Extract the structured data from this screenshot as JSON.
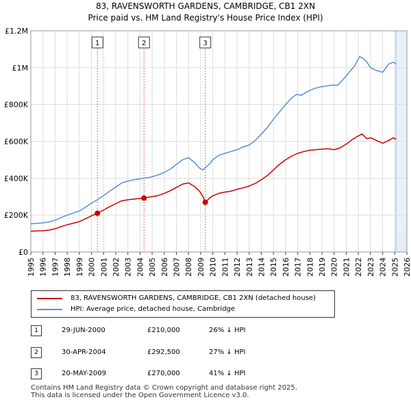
{
  "title_line1": "83, RAVENSWORTH GARDENS, CAMBRIDGE, CB1 2XN",
  "title_line2": "Price paid vs. HM Land Registry's House Price Index (HPI)",
  "colors": {
    "property": "#cc0000",
    "hpi": "#5b8fd0",
    "grid": "#dddddd",
    "shade": "#dce6f5"
  },
  "chart_data": {
    "type": "line",
    "title": "83, RAVENSWORTH GARDENS, CAMBRIDGE, CB1 2XN — Price paid vs. HM Land Registry's House Price Index (HPI)",
    "xlabel": "",
    "ylabel": "",
    "xlim": [
      1995,
      2026
    ],
    "ylim": [
      0,
      1200000
    ],
    "y_ticks": [
      0,
      200000,
      400000,
      600000,
      800000,
      1000000,
      1200000
    ],
    "y_tick_labels": [
      "£0",
      "£200K",
      "£400K",
      "£600K",
      "£800K",
      "£1M",
      "£1.2M"
    ],
    "x_ticks": [
      1995,
      1996,
      1997,
      1998,
      1999,
      2000,
      2001,
      2002,
      2003,
      2004,
      2005,
      2006,
      2007,
      2008,
      2009,
      2010,
      2011,
      2012,
      2013,
      2014,
      2015,
      2016,
      2017,
      2018,
      2019,
      2020,
      2021,
      2022,
      2023,
      2024,
      2025,
      2026
    ],
    "x_tick_labels": [
      "1995",
      "1996",
      "1997",
      "1998",
      "1999",
      "2000",
      "2001",
      "2002",
      "2003",
      "2004",
      "2005",
      "2006",
      "2007",
      "2008",
      "2009",
      "2010",
      "2011",
      "2012",
      "2013",
      "2014",
      "2015",
      "2016",
      "2017",
      "2018",
      "2019",
      "2020",
      "2021",
      "2022",
      "2023",
      "2024",
      "2025",
      "2026"
    ],
    "grid": true,
    "future_shade_from": 2025.1,
    "series": [
      {
        "name": "83, RAVENSWORTH GARDENS, CAMBRIDGE, CB1 2XN (detached house)",
        "points": [
          [
            1995.0,
            113000
          ],
          [
            1995.5,
            114000
          ],
          [
            1996.0,
            115000
          ],
          [
            1996.5,
            119000
          ],
          [
            1997.0,
            126000
          ],
          [
            1997.5,
            137000
          ],
          [
            1998.0,
            148000
          ],
          [
            1998.5,
            156000
          ],
          [
            1999.0,
            165000
          ],
          [
            1999.5,
            180000
          ],
          [
            2000.0,
            196000
          ],
          [
            2000.49,
            210000
          ],
          [
            2001.0,
            228000
          ],
          [
            2001.5,
            246000
          ],
          [
            2002.0,
            262000
          ],
          [
            2002.5,
            278000
          ],
          [
            2003.0,
            283000
          ],
          [
            2003.5,
            287000
          ],
          [
            2004.0,
            290000
          ],
          [
            2004.33,
            292500
          ],
          [
            2004.8,
            298000
          ],
          [
            2005.5,
            306000
          ],
          [
            2006.0,
            318000
          ],
          [
            2006.5,
            333000
          ],
          [
            2007.0,
            350000
          ],
          [
            2007.5,
            368000
          ],
          [
            2008.0,
            375000
          ],
          [
            2008.5,
            355000
          ],
          [
            2008.9,
            330000
          ],
          [
            2009.2,
            300000
          ],
          [
            2009.38,
            270000
          ],
          [
            2009.7,
            290000
          ],
          [
            2010.0,
            305000
          ],
          [
            2010.5,
            318000
          ],
          [
            2011.0,
            325000
          ],
          [
            2011.5,
            330000
          ],
          [
            2012.0,
            340000
          ],
          [
            2012.5,
            348000
          ],
          [
            2013.0,
            358000
          ],
          [
            2013.5,
            372000
          ],
          [
            2014.0,
            392000
          ],
          [
            2014.5,
            415000
          ],
          [
            2015.0,
            445000
          ],
          [
            2015.5,
            475000
          ],
          [
            2016.0,
            500000
          ],
          [
            2016.5,
            520000
          ],
          [
            2017.0,
            535000
          ],
          [
            2017.5,
            545000
          ],
          [
            2018.0,
            552000
          ],
          [
            2018.5,
            555000
          ],
          [
            2019.0,
            558000
          ],
          [
            2019.5,
            560000
          ],
          [
            2020.0,
            555000
          ],
          [
            2020.5,
            565000
          ],
          [
            2021.0,
            585000
          ],
          [
            2021.5,
            610000
          ],
          [
            2022.0,
            630000
          ],
          [
            2022.3,
            640000
          ],
          [
            2022.7,
            615000
          ],
          [
            2023.0,
            620000
          ],
          [
            2023.5,
            605000
          ],
          [
            2024.0,
            590000
          ],
          [
            2024.5,
            605000
          ],
          [
            2024.9,
            620000
          ],
          [
            2025.1,
            612000
          ]
        ]
      },
      {
        "name": "HPI: Average price, detached house, Cambridge",
        "points": [
          [
            1995.0,
            153000
          ],
          [
            1995.5,
            155000
          ],
          [
            1996.0,
            158000
          ],
          [
            1996.5,
            163000
          ],
          [
            1997.0,
            172000
          ],
          [
            1997.5,
            187000
          ],
          [
            1998.0,
            200000
          ],
          [
            1998.5,
            211000
          ],
          [
            1999.0,
            222000
          ],
          [
            1999.5,
            243000
          ],
          [
            2000.0,
            265000
          ],
          [
            2000.49,
            284000
          ],
          [
            2001.0,
            306000
          ],
          [
            2001.5,
            330000
          ],
          [
            2002.0,
            352000
          ],
          [
            2002.5,
            375000
          ],
          [
            2003.0,
            385000
          ],
          [
            2003.5,
            392000
          ],
          [
            2004.0,
            397000
          ],
          [
            2004.33,
            400000
          ],
          [
            2004.8,
            405000
          ],
          [
            2005.5,
            418000
          ],
          [
            2006.0,
            432000
          ],
          [
            2006.5,
            450000
          ],
          [
            2007.0,
            475000
          ],
          [
            2007.5,
            500000
          ],
          [
            2008.0,
            512000
          ],
          [
            2008.5,
            485000
          ],
          [
            2008.9,
            455000
          ],
          [
            2009.2,
            445000
          ],
          [
            2009.38,
            458000
          ],
          [
            2009.7,
            475000
          ],
          [
            2010.0,
            500000
          ],
          [
            2010.5,
            525000
          ],
          [
            2011.0,
            535000
          ],
          [
            2011.5,
            545000
          ],
          [
            2012.0,
            555000
          ],
          [
            2012.5,
            570000
          ],
          [
            2013.0,
            580000
          ],
          [
            2013.5,
            605000
          ],
          [
            2014.0,
            640000
          ],
          [
            2014.5,
            675000
          ],
          [
            2015.0,
            720000
          ],
          [
            2015.5,
            760000
          ],
          [
            2016.0,
            800000
          ],
          [
            2016.5,
            835000
          ],
          [
            2016.9,
            855000
          ],
          [
            2017.3,
            850000
          ],
          [
            2017.8,
            870000
          ],
          [
            2018.3,
            885000
          ],
          [
            2018.8,
            895000
          ],
          [
            2019.3,
            900000
          ],
          [
            2019.8,
            905000
          ],
          [
            2020.3,
            905000
          ],
          [
            2020.8,
            940000
          ],
          [
            2021.3,
            980000
          ],
          [
            2021.7,
            1010000
          ],
          [
            2022.1,
            1060000
          ],
          [
            2022.4,
            1050000
          ],
          [
            2022.7,
            1030000
          ],
          [
            2023.0,
            1000000
          ],
          [
            2023.5,
            985000
          ],
          [
            2024.0,
            975000
          ],
          [
            2024.5,
            1020000
          ],
          [
            2024.9,
            1030000
          ],
          [
            2025.1,
            1020000
          ]
        ]
      }
    ],
    "annotations": [
      {
        "label": "1",
        "x": 2000.49,
        "y": 210000
      },
      {
        "label": "2",
        "x": 2004.33,
        "y": 292500
      },
      {
        "label": "3",
        "x": 2009.38,
        "y": 270000
      }
    ]
  },
  "legend": {
    "property_label": "83, RAVENSWORTH GARDENS, CAMBRIDGE, CB1 2XN (detached house)",
    "hpi_label": "HPI: Average price, detached house, Cambridge"
  },
  "transactions": [
    {
      "num": "1",
      "date": "29-JUN-2000",
      "price": "£210,000",
      "hpi": "26% ↓ HPI"
    },
    {
      "num": "2",
      "date": "30-APR-2004",
      "price": "£292,500",
      "hpi": "27% ↓ HPI"
    },
    {
      "num": "3",
      "date": "20-MAY-2009",
      "price": "£270,000",
      "hpi": "41% ↓ HPI"
    }
  ],
  "footer": {
    "line1": "Contains HM Land Registry data © Crown copyright and database right 2025.",
    "line2": "This data is licensed under the Open Government Licence v3.0."
  }
}
